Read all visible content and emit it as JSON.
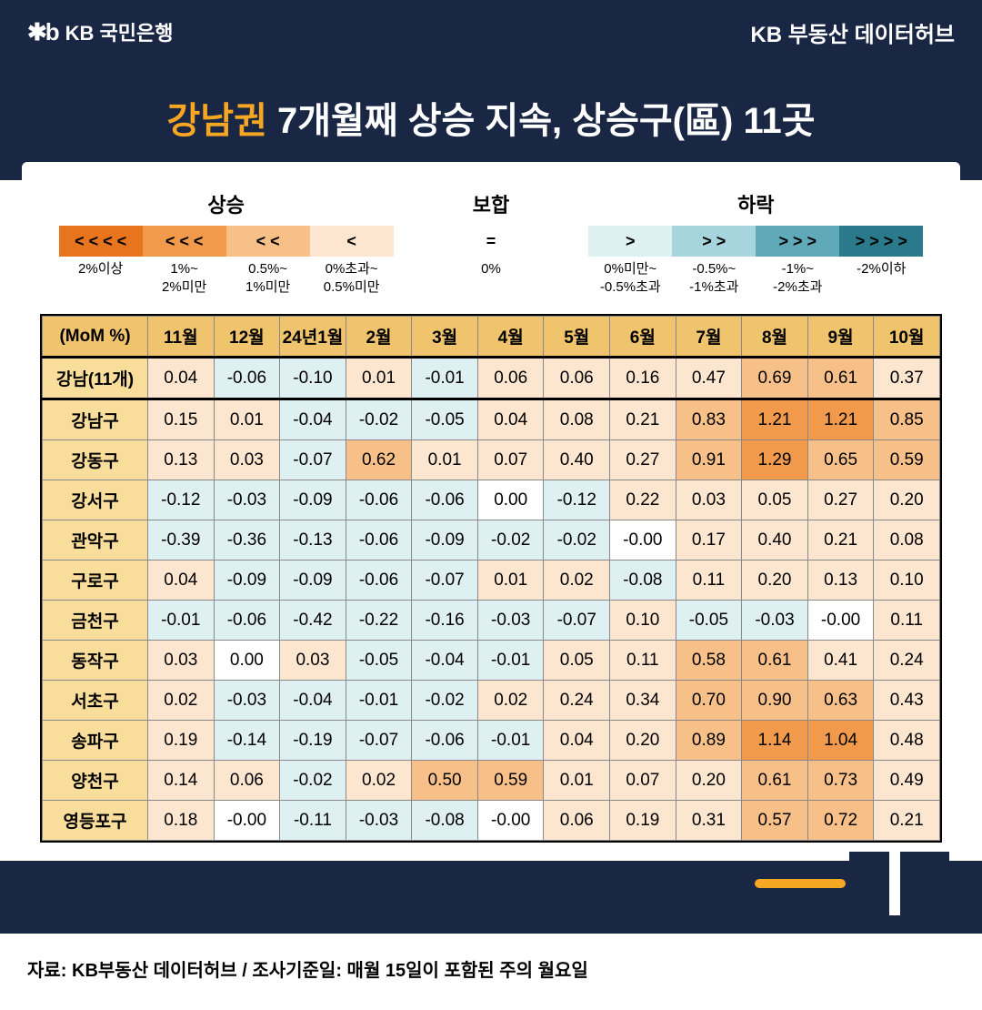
{
  "header": {
    "logo_icon": "✱b",
    "logo_text": "KB 국민은행",
    "right_text": "KB 부동산 데이터허브"
  },
  "title": {
    "highlight": "강남권",
    "rest": " 7개월째 상승 지속, 상승구(區) 11곳"
  },
  "legend": {
    "rise": {
      "title": "상승",
      "cells": [
        {
          "sym": "< < < <",
          "bg": "#e8741e",
          "fg": "#000",
          "label": "2%이상"
        },
        {
          "sym": "< < <",
          "bg": "#f19a4b",
          "fg": "#000",
          "label": "1%~\n2%미만"
        },
        {
          "sym": "< <",
          "bg": "#f8c089",
          "fg": "#000",
          "label": "0.5%~\n1%미만"
        },
        {
          "sym": "<",
          "bg": "#fde6cf",
          "fg": "#000",
          "label": "0%초과~\n0.5%미만"
        }
      ]
    },
    "flat": {
      "title": "보합",
      "cells": [
        {
          "sym": "=",
          "bg": "#ffffff",
          "fg": "#000",
          "label": "0%"
        }
      ]
    },
    "fall": {
      "title": "하락",
      "cells": [
        {
          "sym": ">",
          "bg": "#dff0f3",
          "fg": "#000",
          "label": "0%미만~\n-0.5%초과"
        },
        {
          "sym": "> >",
          "bg": "#a7d5de",
          "fg": "#000",
          "label": "-0.5%~\n-1%초과"
        },
        {
          "sym": "> > >",
          "bg": "#5fa9b8",
          "fg": "#000",
          "label": "-1%~\n-2%초과"
        },
        {
          "sym": "> > > >",
          "bg": "#2b7a8c",
          "fg": "#000",
          "label": "-2%이하"
        }
      ]
    }
  },
  "table": {
    "corner": "(MoM %)",
    "months": [
      "11월",
      "12월",
      "24년1월",
      "2월",
      "3월",
      "4월",
      "5월",
      "6월",
      "7월",
      "8월",
      "9월",
      "10월"
    ],
    "header_bg": "#f0c36d",
    "row_header_bg": "#f9dd9a",
    "rows": [
      {
        "name": "강남(11개)",
        "vals": [
          0.04,
          -0.06,
          -0.1,
          0.01,
          -0.01,
          0.06,
          0.06,
          0.16,
          0.47,
          0.69,
          0.61,
          0.37
        ]
      },
      {
        "name": "강남구",
        "vals": [
          0.15,
          0.01,
          -0.04,
          -0.02,
          -0.05,
          0.04,
          0.08,
          0.21,
          0.83,
          1.21,
          1.21,
          0.85
        ]
      },
      {
        "name": "강동구",
        "vals": [
          0.13,
          0.03,
          -0.07,
          0.62,
          0.01,
          0.07,
          0.4,
          0.27,
          0.91,
          1.29,
          0.65,
          0.59
        ]
      },
      {
        "name": "강서구",
        "vals": [
          -0.12,
          -0.03,
          -0.09,
          -0.06,
          -0.06,
          0.0,
          -0.12,
          0.22,
          0.03,
          0.05,
          0.27,
          0.2
        ]
      },
      {
        "name": "관악구",
        "vals": [
          -0.39,
          -0.36,
          -0.13,
          -0.06,
          -0.09,
          -0.02,
          -0.02,
          -0.0,
          0.17,
          0.4,
          0.21,
          0.08
        ]
      },
      {
        "name": "구로구",
        "vals": [
          0.04,
          -0.09,
          -0.09,
          -0.06,
          -0.07,
          0.01,
          0.02,
          -0.08,
          0.11,
          0.2,
          0.13,
          0.1
        ]
      },
      {
        "name": "금천구",
        "vals": [
          -0.01,
          -0.06,
          -0.42,
          -0.22,
          -0.16,
          -0.03,
          -0.07,
          0.1,
          -0.05,
          -0.03,
          -0.0,
          0.11
        ]
      },
      {
        "name": "동작구",
        "vals": [
          0.03,
          0.0,
          0.03,
          -0.05,
          -0.04,
          -0.01,
          0.05,
          0.11,
          0.58,
          0.61,
          0.41,
          0.24
        ]
      },
      {
        "name": "서초구",
        "vals": [
          0.02,
          -0.03,
          -0.04,
          -0.01,
          -0.02,
          0.02,
          0.24,
          0.34,
          0.7,
          0.9,
          0.63,
          0.43
        ]
      },
      {
        "name": "송파구",
        "vals": [
          0.19,
          -0.14,
          -0.19,
          -0.07,
          -0.06,
          -0.01,
          0.04,
          0.2,
          0.89,
          1.14,
          1.04,
          0.48
        ]
      },
      {
        "name": "양천구",
        "vals": [
          0.14,
          0.06,
          -0.02,
          0.02,
          0.5,
          0.59,
          0.01,
          0.07,
          0.2,
          0.61,
          0.73,
          0.49
        ]
      },
      {
        "name": "영등포구",
        "vals": [
          0.18,
          -0.0,
          -0.11,
          -0.03,
          -0.08,
          -0.0,
          0.06,
          0.19,
          0.31,
          0.57,
          0.72,
          0.21
        ]
      }
    ]
  },
  "colors": {
    "rise4": "#e8741e",
    "rise3": "#f19a4b",
    "rise2": "#f8c089",
    "rise1": "#fde6cf",
    "flat": "#ffffff",
    "fall1": "#dff0f3",
    "fall2": "#a7d5de",
    "fall3": "#5fa9b8",
    "fall4": "#2b7a8c"
  },
  "source": "자료: KB부동산 데이터허브 / 조사기준일: 매월 15일이 포함된 주의 월요일"
}
